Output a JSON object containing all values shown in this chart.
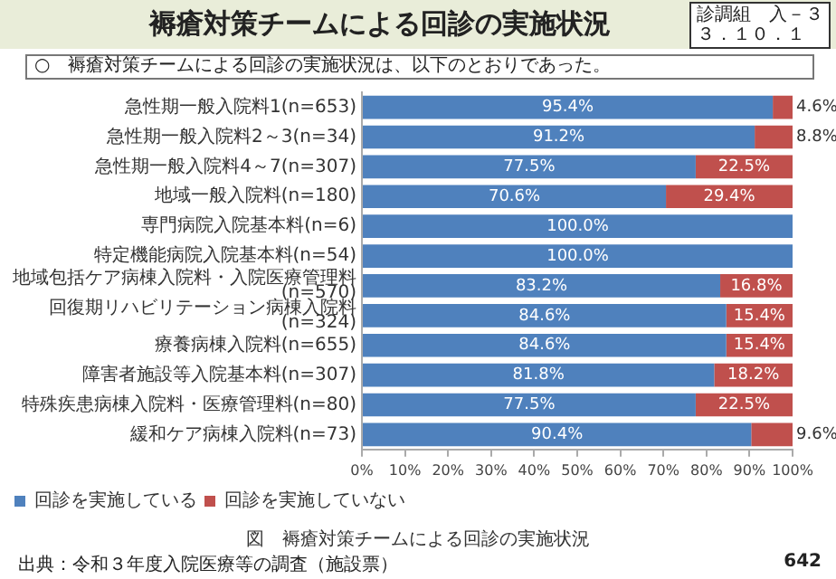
{
  "chart_data": {
    "type": "bar",
    "orientation": "horizontal",
    "stacked": true,
    "title": "褥瘡対策チームによる回診の実施状況",
    "subtitle": "○　褥瘡対策チームによる回診の実施状況は、以下のとおりであった。",
    "categories": [
      "急性期一般入院料1(n=653)",
      "急性期一般入院料2～3(n=34)",
      "急性期一般入院料4～7(n=307)",
      "地域一般入院料(n=180)",
      "専門病院入院基本料(n=6)",
      "特定機能病院入院基本料(n=54)",
      "地域包括ケア病棟入院料・入院医療管理料(n=570)",
      "回復期リハビリテーション病棟入院料(n=324)",
      "療養病棟入院料(n=655)",
      "障害者施設等入院基本料(n=307)",
      "特殊疾患病棟入院料・医療管理料(n=80)",
      "緩和ケア病棟入院料(n=73)"
    ],
    "series": [
      {
        "name": "回診を実施している",
        "color": "#4f81bd",
        "values": [
          95.4,
          91.2,
          77.5,
          70.6,
          100,
          100,
          83.2,
          84.6,
          84.6,
          81.8,
          77.5,
          90.4
        ],
        "value_labels": [
          "95.4%",
          "91.2%",
          "77.5%",
          "70.6%",
          "100.0%",
          "100.0%",
          "83.2%",
          "84.6%",
          "84.6%",
          "81.8%",
          "77.5%",
          "90.4%"
        ]
      },
      {
        "name": "回診を実施していない",
        "color": "#c0504d",
        "values": [
          4.6,
          8.8,
          22.5,
          29.4,
          0,
          0,
          16.8,
          15.4,
          15.4,
          18.2,
          22.5,
          9.6
        ],
        "value_labels": [
          "4.6%",
          "8.8%",
          "22.5%",
          "29.4%",
          null,
          null,
          "16.8%",
          "15.4%",
          "15.4%",
          "18.2%",
          "22.5%",
          "9.6%"
        ]
      }
    ],
    "xlim": [
      0,
      100
    ],
    "xticks": [
      {
        "value": 0,
        "label": "0%"
      },
      {
        "value": 10,
        "label": "10%"
      },
      {
        "value": 20,
        "label": "20%"
      },
      {
        "value": 30,
        "label": "30%"
      },
      {
        "value": 40,
        "label": "40%"
      },
      {
        "value": 50,
        "label": "50%"
      },
      {
        "value": 60,
        "label": "60%"
      },
      {
        "value": 70,
        "label": "70%"
      },
      {
        "value": 80,
        "label": "80%"
      },
      {
        "value": 90,
        "label": "90%"
      },
      {
        "value": 100,
        "label": "100%"
      }
    ],
    "grid": false,
    "legend": "bottom",
    "annotations": [
      "診調組　入－３",
      "３．１０．１",
      "図　褥瘡対策チームによる回診の実施状況",
      "出典：令和３年度入院医療等の調査（施設票）",
      "642"
    ]
  }
}
